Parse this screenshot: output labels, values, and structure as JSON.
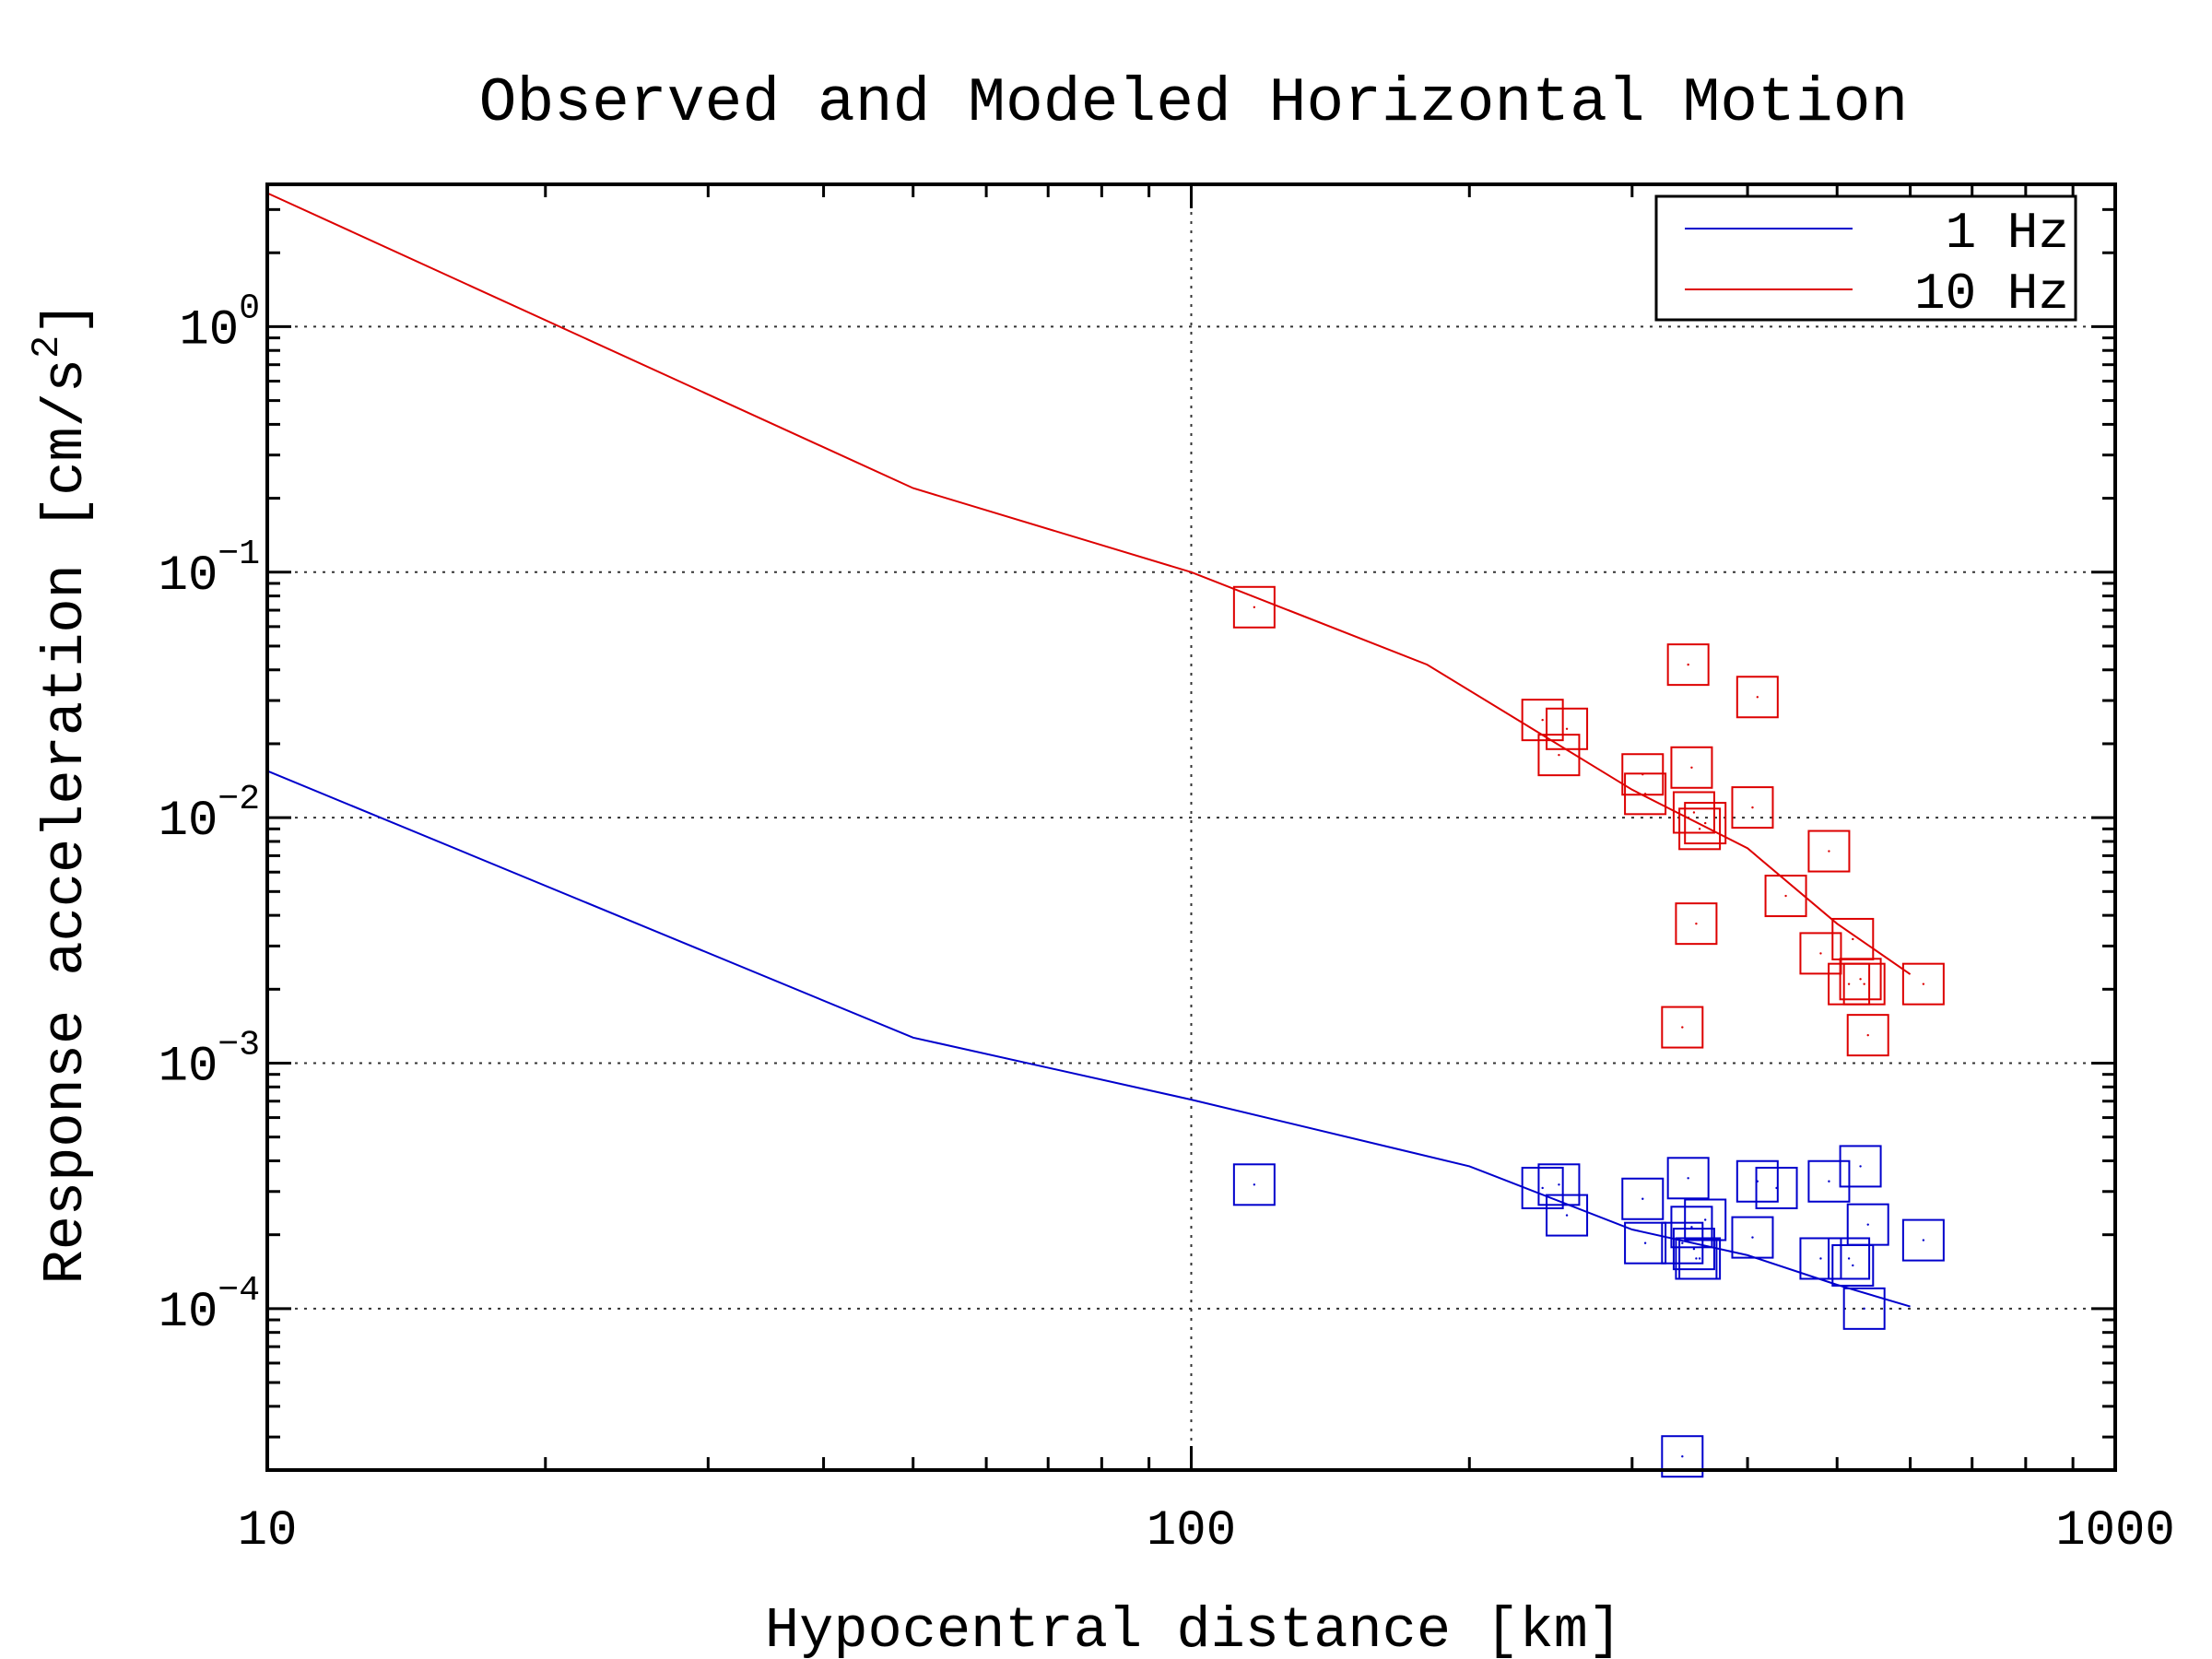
{
  "chart_data": {
    "type": "scatter",
    "title": "Observed and Modeled Horizontal Motion",
    "xlabel": "Hypocentral distance [km]",
    "ylabel_base": "Response acceleration [cm/s",
    "ylabel_sup": "2",
    "ylabel_end": "]",
    "x_scale": "log",
    "y_scale": "log",
    "xlim": [
      10,
      1000
    ],
    "ylim": [
      2.2e-05,
      3.8
    ],
    "grid": "dotted at major ticks",
    "legend_position": "top-right",
    "x_ticks": [
      {
        "value": 10,
        "label": "10"
      },
      {
        "value": 100,
        "label": "100"
      },
      {
        "value": 1000,
        "label": "1000"
      }
    ],
    "y_ticks": [
      {
        "value": 1,
        "base": "10",
        "exp": "0"
      },
      {
        "value": 0.1,
        "base": "10",
        "exp": "−1"
      },
      {
        "value": 0.01,
        "base": "10",
        "exp": "−2"
      },
      {
        "value": 0.001,
        "base": "10",
        "exp": "−3"
      },
      {
        "value": 0.0001,
        "base": "10",
        "exp": "−4"
      }
    ],
    "series": [
      {
        "name": "1 Hz",
        "color": "#0000cc",
        "model_line": {
          "x": [
            10,
            50,
            100,
            200,
            300,
            400,
            500,
            600
          ],
          "y": [
            0.0155,
            0.00127,
            0.00071,
            0.00038,
            0.00021,
            0.000165,
            0.000125,
            0.000102
          ]
        },
        "observed": {
          "x": [
            117,
            240,
            250,
            255,
            308,
            310,
            340,
            345,
            348,
            350,
            352,
            355,
            360,
            405,
            410,
            430,
            480,
            490,
            515,
            520,
            530,
            535,
            540,
            620,
            340
          ],
          "y": [
            0.00032,
            0.00031,
            0.00032,
            0.00024,
            0.00028,
            0.000185,
            0.000185,
            0.00034,
            0.000215,
            0.000175,
            0.00016,
            0.00016,
            0.00023,
            0.000195,
            0.00033,
            0.00031,
            0.00016,
            0.00033,
            0.00016,
            0.00015,
            0.00038,
            0.0001,
            0.00022,
            0.00019,
            2.5e-05
          ]
        }
      },
      {
        "name": "10 Hz",
        "color": "#dd0000",
        "model_line": {
          "x": [
            10,
            50,
            100,
            180,
            300,
            400,
            500,
            600
          ],
          "y": [
            3.5,
            0.22,
            0.1,
            0.042,
            0.013,
            0.0075,
            0.0037,
            0.0023
          ]
        },
        "observed": {
          "x": [
            117,
            240,
            250,
            255,
            308,
            310,
            340,
            345,
            348,
            350,
            352,
            355,
            360,
            405,
            410,
            440,
            480,
            490,
            515,
            520,
            530,
            535,
            540,
            620
          ],
          "y": [
            0.072,
            0.025,
            0.018,
            0.023,
            0.015,
            0.0125,
            0.0014,
            0.042,
            0.016,
            0.0105,
            0.0037,
            0.009,
            0.0095,
            0.011,
            0.031,
            0.0048,
            0.0028,
            0.0073,
            0.0021,
            0.0032,
            0.0022,
            0.0021,
            0.0013,
            0.0021
          ]
        }
      }
    ]
  }
}
